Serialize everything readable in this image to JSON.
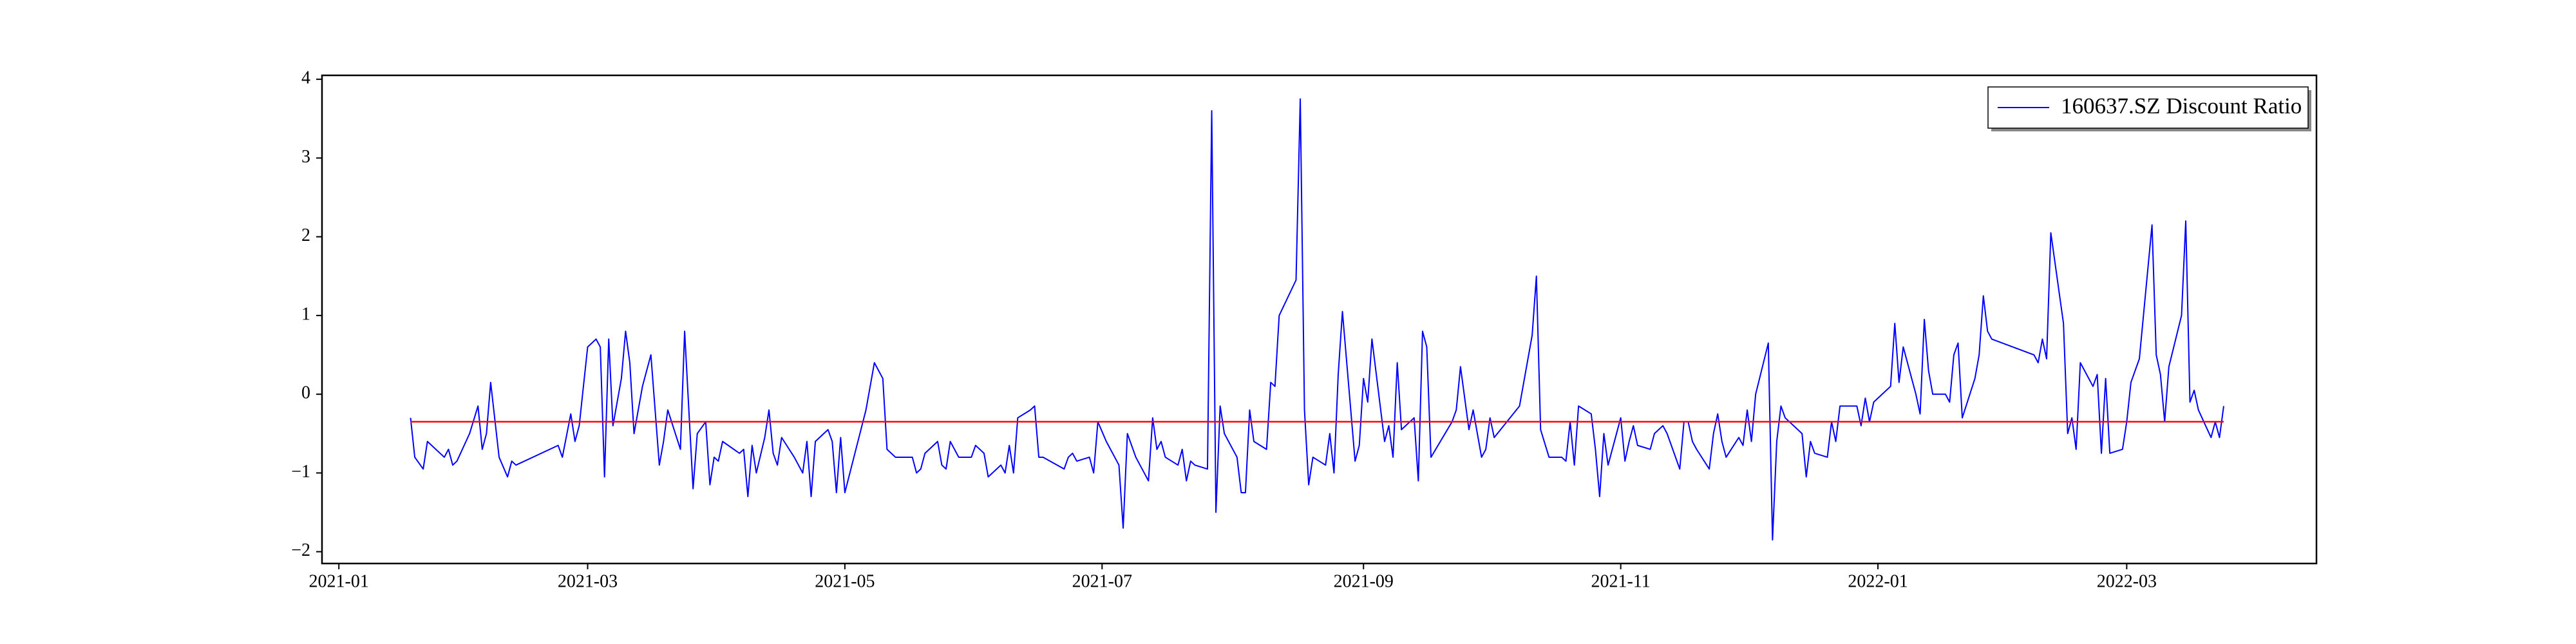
{
  "chart_data": {
    "type": "line",
    "x": [
      "2021-01-18",
      "2021-01-19",
      "2021-01-21",
      "2021-01-22",
      "2021-01-26",
      "2021-01-27",
      "2021-01-28",
      "2021-01-29",
      "2021-02-01",
      "2021-02-03",
      "2021-02-04",
      "2021-02-05",
      "2021-02-06",
      "2021-02-08",
      "2021-02-10",
      "2021-02-11",
      "2021-02-12",
      "2021-02-22",
      "2021-02-23",
      "2021-02-25",
      "2021-02-26",
      "2021-02-27",
      "2021-03-01",
      "2021-03-03",
      "2021-03-04",
      "2021-03-05",
      "2021-03-06",
      "2021-03-07",
      "2021-03-09",
      "2021-03-10",
      "2021-03-11",
      "2021-03-12",
      "2021-03-14",
      "2021-03-16",
      "2021-03-18",
      "2021-03-19",
      "2021-03-20",
      "2021-03-23",
      "2021-03-24",
      "2021-03-26",
      "2021-03-27",
      "2021-03-29",
      "2021-03-30",
      "2021-03-31",
      "2021-04-01",
      "2021-04-02",
      "2021-04-06",
      "2021-04-07",
      "2021-04-08",
      "2021-04-09",
      "2021-04-10",
      "2021-04-12",
      "2021-04-13",
      "2021-04-14",
      "2021-04-15",
      "2021-04-16",
      "2021-04-19",
      "2021-04-21",
      "2021-04-22",
      "2021-04-23",
      "2021-04-24",
      "2021-04-27",
      "2021-04-28",
      "2021-04-29",
      "2021-04-30",
      "2021-05-01",
      "2021-05-06",
      "2021-05-08",
      "2021-05-10",
      "2021-05-11",
      "2021-05-13",
      "2021-05-14",
      "2021-05-17",
      "2021-05-18",
      "2021-05-19",
      "2021-05-20",
      "2021-05-23",
      "2021-05-24",
      "2021-05-25",
      "2021-05-26",
      "2021-05-28",
      "2021-05-31",
      "2021-06-01",
      "2021-06-03",
      "2021-06-04",
      "2021-06-07",
      "2021-06-08",
      "2021-06-09",
      "2021-06-10",
      "2021-06-11",
      "2021-06-14",
      "2021-06-15",
      "2021-06-16",
      "2021-06-17",
      "2021-06-22",
      "2021-06-23",
      "2021-06-24",
      "2021-06-25",
      "2021-06-28",
      "2021-06-29",
      "2021-06-30",
      "2021-07-02",
      "2021-07-05",
      "2021-07-06",
      "2021-07-07",
      "2021-07-09",
      "2021-07-12",
      "2021-07-13",
      "2021-07-14",
      "2021-07-15",
      "2021-07-16",
      "2021-07-19",
      "2021-07-20",
      "2021-07-21",
      "2021-07-22",
      "2021-07-23",
      "2021-07-26",
      "2021-07-27",
      "2021-07-28",
      "2021-07-29",
      "2021-07-30",
      "2021-08-02",
      "2021-08-03",
      "2021-08-04",
      "2021-08-05",
      "2021-08-06",
      "2021-08-09",
      "2021-08-10",
      "2021-08-11",
      "2021-08-12",
      "2021-08-16",
      "2021-08-17",
      "2021-08-18",
      "2021-08-19",
      "2021-08-20",
      "2021-08-23",
      "2021-08-24",
      "2021-08-25",
      "2021-08-26",
      "2021-08-27",
      "2021-08-30",
      "2021-08-31",
      "2021-09-01",
      "2021-09-02",
      "2021-09-03",
      "2021-09-06",
      "2021-09-07",
      "2021-09-08",
      "2021-09-09",
      "2021-09-10",
      "2021-09-13",
      "2021-09-14",
      "2021-09-15",
      "2021-09-16",
      "2021-09-17",
      "2021-09-22",
      "2021-09-23",
      "2021-09-24",
      "2021-09-26",
      "2021-09-27",
      "2021-09-28",
      "2021-09-29",
      "2021-09-30",
      "2021-10-01",
      "2021-10-02",
      "2021-10-08",
      "2021-10-11",
      "2021-10-12",
      "2021-10-13",
      "2021-10-15",
      "2021-10-18",
      "2021-10-19",
      "2021-10-20",
      "2021-10-21",
      "2021-10-22",
      "2021-10-25",
      "2021-10-26",
      "2021-10-27",
      "2021-10-28",
      "2021-10-29",
      "2021-11-01",
      "2021-11-02",
      "2021-11-03",
      "2021-11-04",
      "2021-11-05",
      "2021-11-08",
      "2021-11-09",
      "2021-11-10",
      "2021-11-11",
      "2021-11-12",
      "2021-11-15",
      "2021-11-16",
      "2021-11-17",
      "2021-11-18",
      "2021-11-19",
      "2021-11-22",
      "2021-11-23",
      "2021-11-24",
      "2021-11-25",
      "2021-11-26",
      "2021-11-29",
      "2021-11-30",
      "2021-12-01",
      "2021-12-02",
      "2021-12-03",
      "2021-12-06",
      "2021-12-07",
      "2021-12-08",
      "2021-12-09",
      "2021-12-10",
      "2021-12-13",
      "2021-12-14",
      "2021-12-15",
      "2021-12-16",
      "2021-12-17",
      "2021-12-20",
      "2021-12-21",
      "2021-12-22",
      "2021-12-23",
      "2021-12-27",
      "2021-12-28",
      "2021-12-29",
      "2021-12-30",
      "2021-12-31",
      "2022-01-04",
      "2022-01-05",
      "2022-01-06",
      "2022-01-07",
      "2022-01-10",
      "2022-01-11",
      "2022-01-12",
      "2022-01-13",
      "2022-01-14",
      "2022-01-17",
      "2022-01-18",
      "2022-01-19",
      "2022-01-20",
      "2022-01-21",
      "2022-01-24",
      "2022-01-25",
      "2022-01-26",
      "2022-01-27",
      "2022-01-28",
      "2022-02-07",
      "2022-02-08",
      "2022-02-09",
      "2022-02-10",
      "2022-02-11",
      "2022-02-14",
      "2022-02-15",
      "2022-02-16",
      "2022-02-17",
      "2022-02-18",
      "2022-02-21",
      "2022-02-22",
      "2022-02-23",
      "2022-02-24",
      "2022-02-25",
      "2022-02-28",
      "2022-03-01",
      "2022-03-02",
      "2022-03-04",
      "2022-03-07",
      "2022-03-08",
      "2022-03-09",
      "2022-03-10",
      "2022-03-11",
      "2022-03-14",
      "2022-03-15",
      "2022-03-16",
      "2022-03-17",
      "2022-03-18",
      "2022-03-21",
      "2022-03-22",
      "2022-03-23",
      "2022-03-24"
    ],
    "series": [
      {
        "name": "160637.SZ Discount Ratio",
        "color": "#0000ff",
        "values": [
          -0.3,
          -0.8,
          -0.95,
          -0.6,
          -0.8,
          -0.7,
          -0.9,
          -0.85,
          -0.5,
          -0.15,
          -0.7,
          -0.5,
          0.15,
          -0.8,
          -1.05,
          -0.85,
          -0.9,
          -0.65,
          -0.8,
          -0.25,
          -0.6,
          -0.4,
          0.6,
          0.7,
          0.6,
          -1.05,
          0.7,
          -0.4,
          0.2,
          0.8,
          0.4,
          -0.5,
          0.1,
          0.5,
          -0.9,
          -0.6,
          -0.2,
          -0.7,
          0.8,
          -1.2,
          -0.5,
          -0.35,
          -1.15,
          -0.8,
          -0.85,
          -0.6,
          -0.75,
          -0.7,
          -1.3,
          -0.65,
          -1.0,
          -0.55,
          -0.2,
          -0.75,
          -0.9,
          -0.55,
          -0.8,
          -1.0,
          -0.6,
          -1.3,
          -0.6,
          -0.45,
          -0.6,
          -1.25,
          -0.55,
          -1.25,
          -0.2,
          0.4,
          0.2,
          -0.7,
          -0.8,
          -0.8,
          -0.8,
          -1.0,
          -0.95,
          -0.75,
          -0.6,
          -0.9,
          -0.95,
          -0.6,
          -0.8,
          -0.8,
          -0.65,
          -0.75,
          -1.05,
          -0.9,
          -1.0,
          -0.65,
          -1.0,
          -0.3,
          -0.2,
          -0.15,
          -0.8,
          -0.8,
          -0.95,
          -0.8,
          -0.75,
          -0.85,
          -0.8,
          -1.0,
          -0.35,
          -0.6,
          -0.9,
          -1.7,
          -0.5,
          -0.8,
          -1.1,
          -0.3,
          -0.7,
          -0.6,
          -0.8,
          -0.9,
          -0.7,
          -1.1,
          -0.85,
          -0.9,
          -0.95,
          3.6,
          -1.5,
          -0.15,
          -0.5,
          -0.8,
          -1.25,
          -1.25,
          -0.2,
          -0.6,
          -0.7,
          0.15,
          0.1,
          1.0,
          1.45,
          3.75,
          -0.2,
          -1.15,
          -0.8,
          -0.9,
          -0.5,
          -1.0,
          0.25,
          1.05,
          -0.85,
          -0.65,
          0.2,
          -0.1,
          0.7,
          -0.6,
          -0.4,
          -0.8,
          0.4,
          -0.45,
          -0.3,
          -1.1,
          0.8,
          0.6,
          -0.8,
          -0.35,
          -0.2,
          0.35,
          -0.45,
          -0.2,
          -0.5,
          -0.8,
          -0.7,
          -0.3,
          -0.55,
          -0.15,
          0.75,
          1.5,
          -0.45,
          -0.8,
          -0.8,
          -0.85,
          -0.35,
          -0.9,
          -0.15,
          -0.25,
          -0.7,
          -1.3,
          -0.5,
          -0.9,
          -0.3,
          -0.85,
          -0.6,
          -0.4,
          -0.65,
          -0.7,
          -0.5,
          -0.45,
          -0.4,
          -0.5,
          -0.95,
          -0.35,
          -0.35,
          -0.6,
          -0.7,
          -0.95,
          -0.5,
          -0.25,
          -0.6,
          -0.8,
          -0.55,
          -0.65,
          -0.2,
          -0.6,
          0,
          0.65,
          -1.85,
          -0.6,
          -0.15,
          -0.3,
          -0.45,
          -0.5,
          -1.05,
          -0.6,
          -0.75,
          -0.8,
          -0.35,
          -0.6,
          -0.15,
          -0.15,
          -0.4,
          -0.05,
          -0.35,
          -0.1,
          0.1,
          0.9,
          0.15,
          0.6,
          0,
          -0.25,
          0.95,
          0.3,
          0,
          0,
          -0.1,
          0.5,
          0.65,
          -0.3,
          0.2,
          0.5,
          1.25,
          0.8,
          0.7,
          0.5,
          0.4,
          0.7,
          0.45,
          2.05,
          0.9,
          -0.5,
          -0.3,
          -0.7,
          0.4,
          0.1,
          0.25,
          -0.75,
          0.2,
          -0.75,
          -0.7,
          -0.35,
          0.15,
          0.45,
          2.15,
          0.5,
          0.25,
          -0.35,
          0.35,
          1.0,
          2.2,
          -0.1,
          0.05,
          -0.2,
          -0.55,
          -0.35,
          -0.55,
          -0.15
        ]
      }
    ],
    "reference_line": {
      "value": -0.35,
      "color": "#ff0000"
    },
    "xlim": [
      "2020-12-28",
      "2022-04-15"
    ],
    "xticks": [
      "2021-01",
      "2021-03",
      "2021-05",
      "2021-07",
      "2021-09",
      "2021-11",
      "2022-01",
      "2022-03"
    ],
    "ylim": [
      -2.15,
      4.05
    ],
    "yticks": [
      {
        "value": -2,
        "label": "−2"
      },
      {
        "value": -1,
        "label": "−1"
      },
      0,
      1,
      2,
      3,
      4
    ],
    "grid": false,
    "legend": "upper right"
  }
}
